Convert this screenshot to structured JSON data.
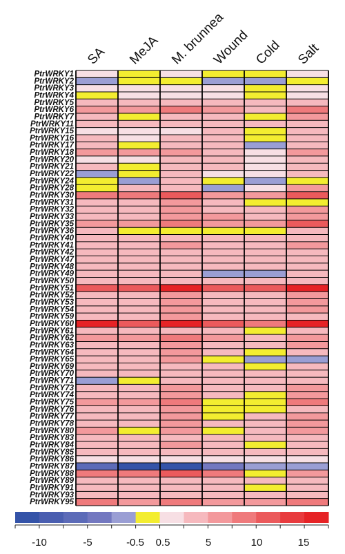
{
  "chart_data": {
    "type": "heatmap",
    "columns": [
      "SA",
      "MeJA",
      "M. brunnea",
      "Wound",
      "Cold",
      "Salt"
    ],
    "rows": [
      "PtrWRKY1",
      "PtrWRKY2",
      "PtrWRKY3",
      "PtrWRKY4",
      "PtrWRKY5",
      "PtrWRKY6",
      "PtrWRKY7",
      "PtrWRKY11",
      "PtrWRKY15",
      "PtrWRKY16",
      "PtrWRKY17",
      "PtrWRKY18",
      "PtrWRKY20",
      "PtrWRKY21",
      "PtrWRKY22",
      "PtrWRKY24",
      "PtrWRKY28",
      "PtrWRKY30",
      "PtrWRKY31",
      "PtrWRKY32",
      "PtrWRKY33",
      "PtrWRKY35",
      "PtrWRKY36",
      "PtrWRKY40",
      "PtrWRKY41",
      "PtrWRKY42",
      "PtrWRKY47",
      "PtrWRKY48",
      "PtrWRKY49",
      "PtrWRKY50",
      "PtrWRKY51",
      "PtrWRKY52",
      "PtrWRKY53",
      "PtrWRKY54",
      "PtrWRKY59",
      "PtrWRKY60",
      "PtrWRKY61",
      "PtrWRKY62",
      "PtrWRKY63",
      "PtrWRKY64",
      "PtrWRKY65",
      "PtrWRKY69",
      "PtrWRKY70",
      "PtrWRKY71",
      "PtrWRKY73",
      "PtrWRKY74",
      "PtrWRKY75",
      "PtrWRKY76",
      "PtrWRKY77",
      "PtrWRKY78",
      "PtrWRKY80",
      "PtrWRKY83",
      "PtrWRKY84",
      "PtrWRKY85",
      "PtrWRKY86",
      "PtrWRKY87",
      "PtrWRKY88",
      "PtrWRKY89",
      "PtrWRKY91",
      "PtrWRKY93",
      "PtrWRKY95"
    ],
    "values": [
      [
        3,
        0,
        3,
        0,
        0,
        3
      ],
      [
        -3,
        0,
        0,
        -3,
        -3,
        0
      ],
      [
        3,
        3,
        3,
        3,
        0,
        3
      ],
      [
        0,
        3,
        3,
        3,
        0,
        3
      ],
      [
        5,
        5,
        5,
        5,
        5,
        5
      ],
      [
        8,
        8,
        10,
        8,
        5,
        10
      ],
      [
        5,
        0,
        5,
        5,
        0,
        8
      ],
      [
        5,
        5,
        5,
        5,
        5,
        5
      ],
      [
        3,
        3,
        3,
        5,
        0,
        5
      ],
      [
        5,
        3,
        5,
        5,
        0,
        5
      ],
      [
        5,
        0,
        5,
        5,
        -3,
        5
      ],
      [
        8,
        8,
        8,
        5,
        3,
        8
      ],
      [
        3,
        3,
        5,
        5,
        3,
        5
      ],
      [
        5,
        0,
        5,
        5,
        3,
        5
      ],
      [
        -3,
        0,
        5,
        3,
        3,
        5
      ],
      [
        0,
        -3,
        5,
        0,
        -3,
        0
      ],
      [
        0,
        5,
        5,
        -3,
        3,
        8
      ],
      [
        10,
        10,
        12,
        8,
        8,
        12
      ],
      [
        5,
        5,
        8,
        5,
        0,
        0
      ],
      [
        5,
        5,
        8,
        5,
        5,
        8
      ],
      [
        5,
        5,
        8,
        8,
        5,
        8
      ],
      [
        8,
        8,
        10,
        8,
        8,
        12
      ],
      [
        5,
        0,
        0,
        0,
        0,
        5
      ],
      [
        5,
        5,
        5,
        5,
        5,
        5
      ],
      [
        5,
        5,
        8,
        5,
        5,
        8
      ],
      [
        5,
        5,
        5,
        5,
        5,
        5
      ],
      [
        5,
        5,
        5,
        5,
        5,
        5
      ],
      [
        5,
        5,
        5,
        5,
        5,
        5
      ],
      [
        5,
        5,
        5,
        -3,
        -3,
        5
      ],
      [
        5,
        5,
        5,
        5,
        5,
        5
      ],
      [
        12,
        12,
        14,
        12,
        12,
        14
      ],
      [
        5,
        5,
        8,
        5,
        5,
        8
      ],
      [
        5,
        5,
        8,
        5,
        5,
        8
      ],
      [
        5,
        5,
        8,
        5,
        5,
        8
      ],
      [
        5,
        5,
        8,
        5,
        5,
        5
      ],
      [
        14,
        12,
        14,
        12,
        10,
        14
      ],
      [
        5,
        5,
        5,
        5,
        0,
        5
      ],
      [
        8,
        8,
        10,
        8,
        5,
        8
      ],
      [
        5,
        5,
        8,
        5,
        5,
        8
      ],
      [
        5,
        5,
        8,
        5,
        0,
        5
      ],
      [
        5,
        5,
        8,
        0,
        -3,
        -3
      ],
      [
        5,
        5,
        5,
        5,
        0,
        5
      ],
      [
        5,
        5,
        5,
        5,
        5,
        5
      ],
      [
        -3,
        0,
        5,
        5,
        5,
        5
      ],
      [
        5,
        5,
        8,
        5,
        5,
        8
      ],
      [
        5,
        5,
        8,
        5,
        0,
        8
      ],
      [
        8,
        8,
        10,
        0,
        0,
        10
      ],
      [
        5,
        5,
        8,
        0,
        0,
        5
      ],
      [
        5,
        5,
        8,
        0,
        5,
        8
      ],
      [
        5,
        5,
        8,
        5,
        5,
        8
      ],
      [
        8,
        0,
        8,
        0,
        5,
        8
      ],
      [
        5,
        5,
        5,
        5,
        5,
        5
      ],
      [
        5,
        5,
        8,
        5,
        0,
        5
      ],
      [
        5,
        5,
        5,
        5,
        5,
        5
      ],
      [
        3,
        3,
        3,
        3,
        3,
        3
      ],
      [
        -8,
        -12,
        -12,
        -5,
        -3,
        -3
      ],
      [
        10,
        10,
        12,
        10,
        0,
        8
      ],
      [
        5,
        5,
        5,
        5,
        5,
        5
      ],
      [
        5,
        5,
        5,
        5,
        0,
        5
      ],
      [
        5,
        5,
        5,
        5,
        5,
        5
      ],
      [
        10,
        8,
        10,
        8,
        8,
        10
      ]
    ],
    "colorbar": {
      "colors": [
        "#3453a8",
        "#4a5eb0",
        "#5c6bb8",
        "#7378c0",
        "#9a9ed4",
        "#f3ed30",
        "#f7dfe4",
        "#f6b9be",
        "#f3999c",
        "#ef7a7c",
        "#eb5a5c",
        "#e83b3e",
        "#e62326"
      ],
      "tick_labels": [
        "-10",
        "-5",
        "-0.5",
        "0.5",
        "5",
        "10",
        "15"
      ]
    }
  }
}
